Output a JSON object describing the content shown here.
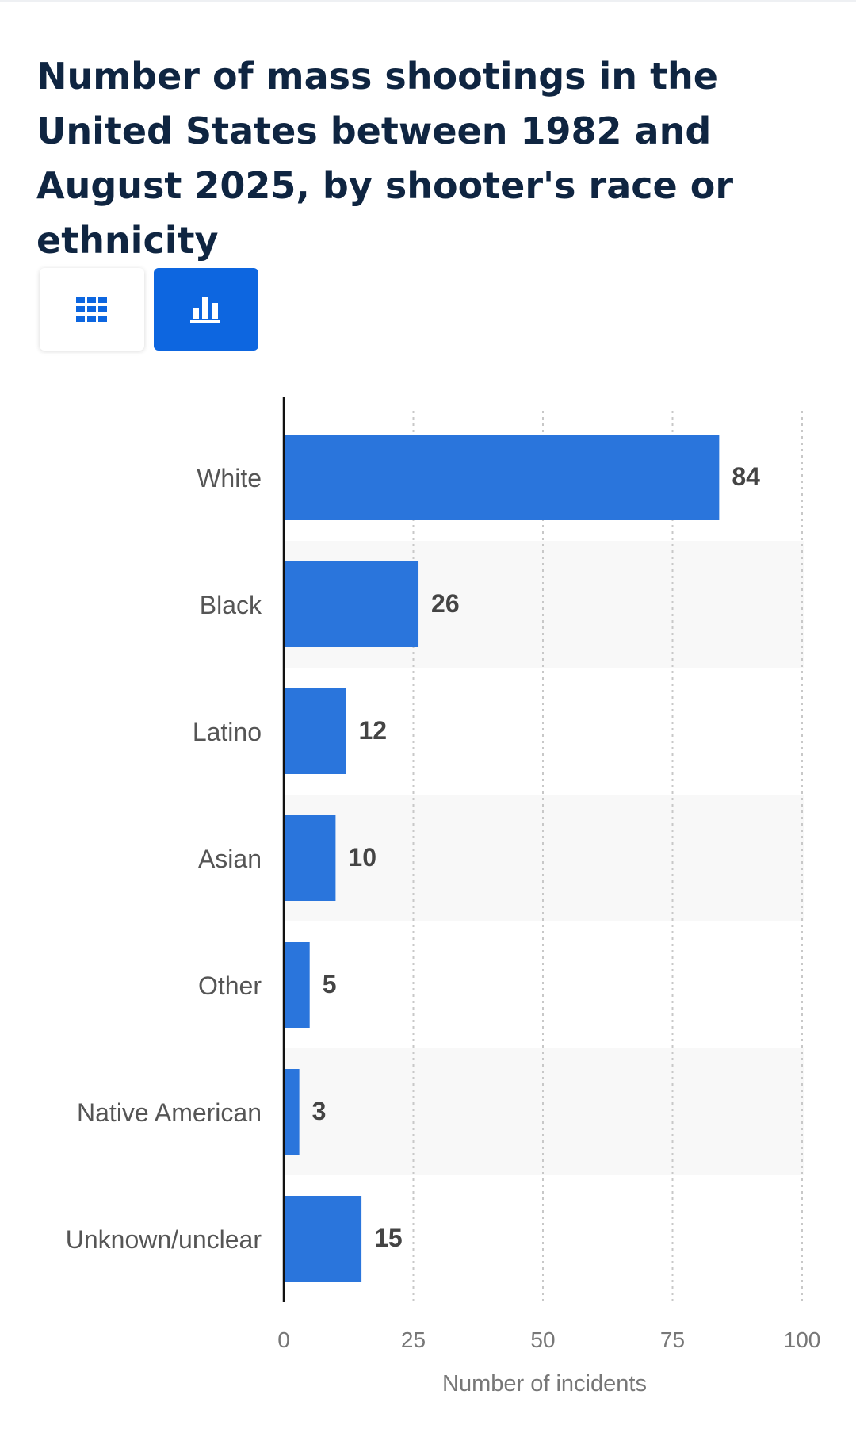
{
  "title": "Number of mass shootings in the United States between 1982 and August 2025, by shooter's race or ethnicity",
  "view_toggle": {
    "table_icon": "grid-table-icon",
    "chart_icon": "bar-chart-icon",
    "active": "chart",
    "active_color": "#0d66e0",
    "inactive_icon_color": "#0d66e0"
  },
  "chart_data": {
    "type": "bar",
    "orientation": "horizontal",
    "categories": [
      "White",
      "Black",
      "Latino",
      "Asian",
      "Other",
      "Native American",
      "Unknown/unclear"
    ],
    "values": [
      84,
      26,
      12,
      10,
      5,
      3,
      15
    ],
    "value_labels": [
      "84",
      "26",
      "12",
      "10",
      "5",
      "3",
      "15"
    ],
    "xlabel": "Number of incidents",
    "ylabel": "",
    "xlim": [
      0,
      100
    ],
    "x_ticks": [
      "0",
      "25",
      "50",
      "75",
      "100"
    ],
    "grid": "vertical dotted",
    "bar_color": "#2a75dc",
    "alternate_row_shading": "#f8f8f8"
  }
}
